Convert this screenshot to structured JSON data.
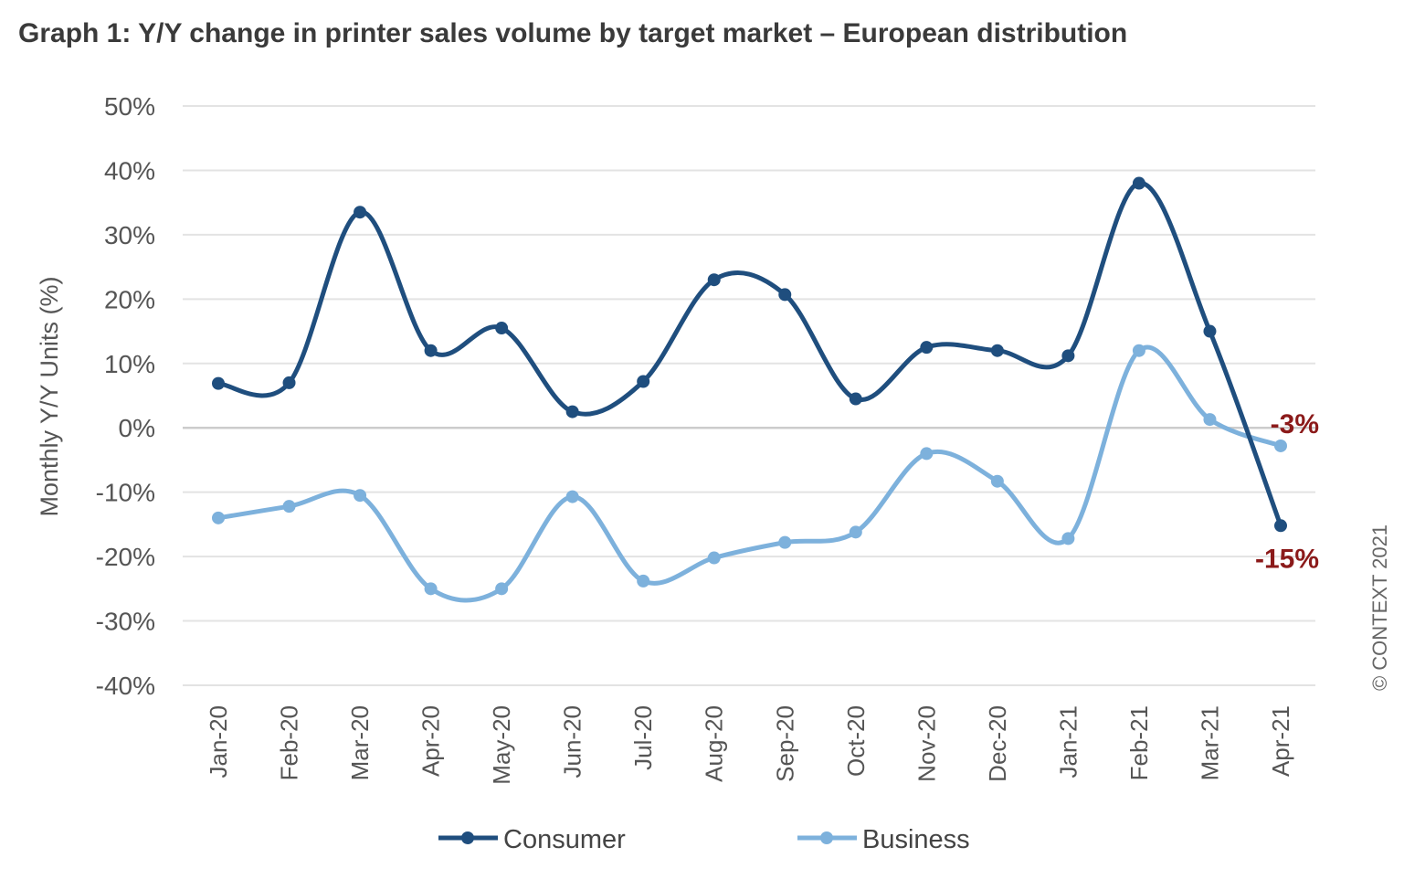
{
  "title": "Graph 1: Y/Y change in printer sales volume by target market – European distribution",
  "credit": "© CONTEXT 2021",
  "colors": {
    "consumer": "#1f4e7e",
    "business": "#7db1dc",
    "grid": "#e3e3e3",
    "zero": "#cccccc",
    "annotation": "#8b1a1a"
  },
  "chart_data": {
    "type": "line",
    "title": "Graph 1: Y/Y change in printer sales volume by target market – European distribution",
    "xlabel": "",
    "ylabel": "Monthly Y/Y Units (%)",
    "ylim": [
      -40,
      50
    ],
    "ytick_values": [
      50,
      40,
      30,
      20,
      10,
      0,
      -10,
      -20,
      -30,
      -40
    ],
    "ytick_labels": [
      "50%",
      "40%",
      "30%",
      "20%",
      "10%",
      "0%",
      "-10%",
      "-20%",
      "-30%",
      "-40%"
    ],
    "categories": [
      "Jan-20",
      "Feb-20",
      "Mar-20",
      "Apr-20",
      "May-20",
      "Jun-20",
      "Jul-20",
      "Aug-20",
      "Sep-20",
      "Oct-20",
      "Nov-20",
      "Dec-20",
      "Jan-21",
      "Feb-21",
      "Mar-21",
      "Apr-21"
    ],
    "grid": true,
    "legend": "bottom",
    "series": [
      {
        "name": "Consumer",
        "color": "#1f4e7e",
        "values": [
          6.9,
          7.0,
          33.5,
          12.0,
          15.5,
          2.5,
          7.2,
          23.0,
          20.7,
          4.5,
          12.5,
          12.0,
          11.2,
          38.0,
          15.0,
          -15.2
        ]
      },
      {
        "name": "Business",
        "color": "#7db1dc",
        "values": [
          -14.0,
          -12.2,
          -10.5,
          -25.0,
          -25.0,
          -10.7,
          -23.8,
          -20.2,
          -17.8,
          -16.2,
          -4.0,
          -8.3,
          -17.2,
          12.0,
          1.3,
          -2.8
        ]
      }
    ],
    "annotations": [
      {
        "text": "-3%",
        "series": "Business",
        "category": "Apr-21"
      },
      {
        "text": "-15%",
        "series": "Consumer",
        "category": "Apr-21"
      }
    ]
  }
}
